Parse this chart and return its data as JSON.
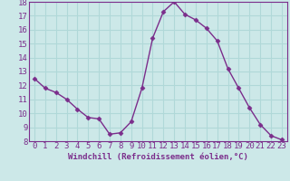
{
  "x": [
    0,
    1,
    2,
    3,
    4,
    5,
    6,
    7,
    8,
    9,
    10,
    11,
    12,
    13,
    14,
    15,
    16,
    17,
    18,
    19,
    20,
    21,
    22,
    23
  ],
  "y": [
    12.5,
    11.8,
    11.5,
    11.0,
    10.3,
    9.7,
    9.6,
    8.5,
    8.6,
    9.4,
    11.8,
    15.4,
    17.3,
    18.0,
    17.1,
    16.7,
    16.1,
    15.2,
    13.2,
    11.8,
    10.4,
    9.2,
    8.4,
    8.1
  ],
  "line_color": "#7B2D8B",
  "marker": "D",
  "marker_size": 2.5,
  "background_color": "#cce8e8",
  "grid_color": "#b0d8d8",
  "xlabel": "Windchill (Refroidissement éolien,°C)",
  "ylabel": "",
  "ylim": [
    8,
    18
  ],
  "xlim": [
    -0.5,
    23.5
  ],
  "yticks": [
    8,
    9,
    10,
    11,
    12,
    13,
    14,
    15,
    16,
    17,
    18
  ],
  "xticks": [
    0,
    1,
    2,
    3,
    4,
    5,
    6,
    7,
    8,
    9,
    10,
    11,
    12,
    13,
    14,
    15,
    16,
    17,
    18,
    19,
    20,
    21,
    22,
    23
  ],
  "xlabel_fontsize": 6.5,
  "tick_fontsize": 6.5,
  "line_width": 1.0
}
